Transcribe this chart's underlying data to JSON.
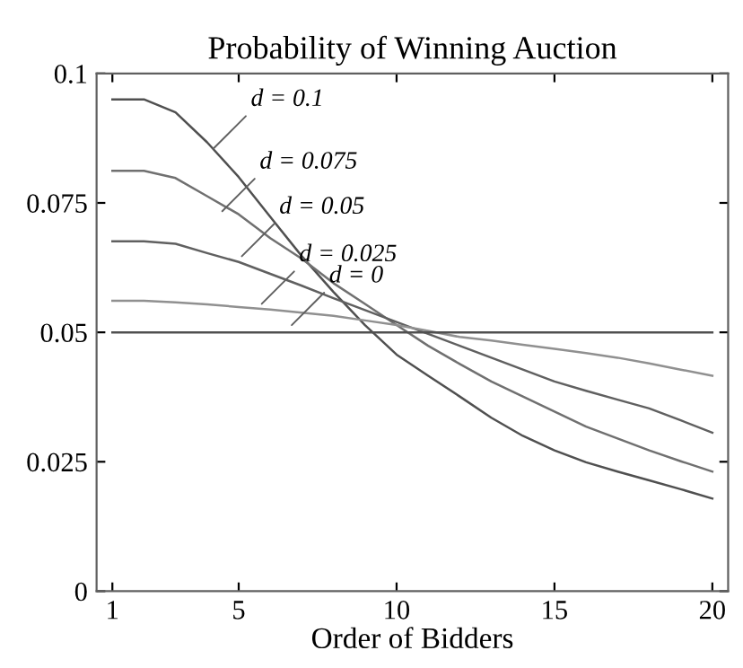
{
  "chart_data": {
    "type": "line",
    "title": "Probability of Winning Auction",
    "xlabel": "Order of Bidders",
    "x": [
      1,
      2,
      3,
      4,
      5,
      6,
      7,
      8,
      9,
      10,
      11,
      12,
      13,
      14,
      15,
      16,
      17,
      18,
      19,
      20
    ],
    "series": [
      {
        "color": "#505050",
        "values": [
          0.095,
          0.095,
          0.0925,
          0.0867,
          0.08,
          0.0723,
          0.0647,
          0.0578,
          0.0514,
          0.0457,
          0.0416,
          0.0376,
          0.0335,
          0.03,
          0.0272,
          0.0249,
          0.0231,
          0.0214,
          0.0197,
          0.0179
        ]
      },
      {
        "color": "#707070",
        "values": [
          0.0812,
          0.0812,
          0.0798,
          0.0763,
          0.0728,
          0.0682,
          0.0642,
          0.0595,
          0.0555,
          0.0514,
          0.0474,
          0.0439,
          0.0405,
          0.0376,
          0.0347,
          0.0318,
          0.0295,
          0.0272,
          0.0251,
          0.0231
        ]
      },
      {
        "color": "#606060",
        "values": [
          0.0676,
          0.0676,
          0.0671,
          0.0653,
          0.0636,
          0.0613,
          0.059,
          0.0566,
          0.0543,
          0.052,
          0.0497,
          0.0474,
          0.0451,
          0.0428,
          0.0405,
          0.0387,
          0.037,
          0.0353,
          0.033,
          0.0306
        ]
      },
      {
        "color": "#909090",
        "values": [
          0.0561,
          0.0561,
          0.0558,
          0.0554,
          0.0549,
          0.0544,
          0.0538,
          0.0532,
          0.0523,
          0.0514,
          0.0503,
          0.0491,
          0.0484,
          0.0476,
          0.0468,
          0.046,
          0.0451,
          0.044,
          0.0428,
          0.0416
        ]
      },
      {
        "color": "#505050",
        "values": [
          0.05,
          0.05,
          0.05,
          0.05,
          0.05,
          0.05,
          0.05,
          0.05,
          0.05,
          0.05,
          0.05,
          0.05,
          0.05,
          0.05,
          0.05,
          0.05,
          0.05,
          0.05,
          0.05,
          0.05
        ]
      }
    ],
    "annotations": [
      {
        "text": "d = 0.1",
        "x": 4.2,
        "y": 0.0855
      },
      {
        "text": "d = 0.075",
        "x": 4.48,
        "y": 0.0734
      },
      {
        "text": "d = 0.05",
        "x": 5.1,
        "y": 0.0647
      },
      {
        "text": "d = 0.025",
        "x": 5.73,
        "y": 0.0555
      },
      {
        "text": "d = 0",
        "x": 6.68,
        "y": 0.0514
      }
    ],
    "xlim": [
      0.5,
      20.5
    ],
    "ylim": [
      0,
      0.1
    ],
    "xticks": [
      1,
      5,
      10,
      15,
      20
    ],
    "yticks": [
      0,
      0.025,
      0.05,
      0.075,
      0.1
    ],
    "grid": false,
    "legend": false,
    "marker": "none",
    "line_style": "solid"
  }
}
